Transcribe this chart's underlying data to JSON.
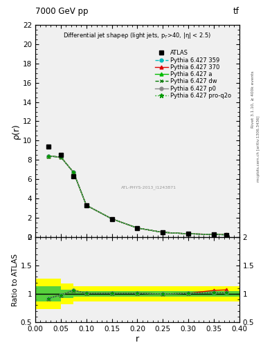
{
  "title_top": "7000 GeV pp",
  "title_right": "tf",
  "ylabel_main": "ρ(r)",
  "ylabel_ratio": "Ratio to ATLAS",
  "xlabel": "r",
  "right_label1": "Rivet 3.1.10, ≥ 400k events",
  "right_label2": "mcplots.cern.ch [arXiv:1306.3436]",
  "r_values": [
    0.025,
    0.05,
    0.075,
    0.1,
    0.15,
    0.2,
    0.25,
    0.3,
    0.35,
    0.375
  ],
  "atlas_data": [
    9.4,
    8.5,
    6.3,
    3.3,
    1.9,
    0.95,
    0.5,
    0.35,
    0.28,
    0.25
  ],
  "py359_data": [
    8.4,
    8.3,
    6.7,
    3.3,
    1.9,
    0.95,
    0.5,
    0.35,
    0.28,
    0.25
  ],
  "py370_data": [
    8.4,
    8.3,
    6.7,
    3.3,
    1.9,
    0.95,
    0.5,
    0.35,
    0.29,
    0.26
  ],
  "pya_data": [
    8.4,
    8.3,
    6.7,
    3.3,
    1.9,
    0.95,
    0.5,
    0.35,
    0.28,
    0.25
  ],
  "pydw_data": [
    8.4,
    8.3,
    6.7,
    3.3,
    1.9,
    0.95,
    0.5,
    0.35,
    0.28,
    0.25
  ],
  "pyp0_data": [
    8.4,
    8.3,
    6.7,
    3.3,
    1.9,
    0.95,
    0.5,
    0.35,
    0.28,
    0.25
  ],
  "pyq2o_data": [
    8.4,
    8.3,
    6.7,
    3.3,
    1.9,
    0.95,
    0.5,
    0.35,
    0.28,
    0.25
  ],
  "ratio_py359": [
    0.91,
    0.98,
    1.06,
    1.01,
    1.01,
    1.01,
    1.0,
    1.01,
    1.02,
    1.02
  ],
  "ratio_py370": [
    0.92,
    0.98,
    1.06,
    1.01,
    1.01,
    1.01,
    1.0,
    1.01,
    1.06,
    1.07
  ],
  "ratio_pya": [
    0.92,
    0.98,
    1.06,
    1.01,
    1.01,
    1.01,
    1.0,
    1.01,
    1.02,
    1.02
  ],
  "ratio_pydw": [
    0.92,
    0.98,
    1.06,
    1.01,
    1.01,
    1.01,
    1.0,
    1.01,
    1.02,
    1.02
  ],
  "ratio_pyp0": [
    0.92,
    0.98,
    1.06,
    1.01,
    1.01,
    1.01,
    1.0,
    1.01,
    1.02,
    1.02
  ],
  "ratio_pyq2o": [
    0.92,
    0.98,
    1.06,
    1.01,
    1.01,
    1.01,
    1.0,
    1.01,
    1.02,
    1.02
  ],
  "band_r_edges": [
    0.0,
    0.025,
    0.05,
    0.1,
    0.15,
    0.2,
    0.25,
    0.3,
    0.35,
    0.375,
    0.4
  ],
  "ratio_yellow_lo": [
    0.73,
    0.73,
    0.82,
    0.87,
    0.87,
    0.87,
    0.87,
    0.87,
    0.87,
    0.87
  ],
  "ratio_yellow_hi": [
    1.27,
    1.27,
    1.18,
    1.13,
    1.13,
    1.13,
    1.13,
    1.13,
    1.13,
    1.13
  ],
  "ratio_green_lo": [
    0.87,
    0.87,
    0.93,
    0.95,
    0.95,
    0.95,
    0.95,
    0.95,
    0.95,
    0.95
  ],
  "ratio_green_hi": [
    1.13,
    1.13,
    1.07,
    1.05,
    1.05,
    1.05,
    1.05,
    1.05,
    1.05,
    1.05
  ],
  "color_359": "#00BBBB",
  "color_370": "#DD0000",
  "color_a": "#00BB00",
  "color_dw": "#007700",
  "color_p0": "#888888",
  "color_q2o": "#009900",
  "ylim_main": [
    0,
    22
  ],
  "ylim_ratio": [
    0.5,
    2.0
  ],
  "xlim": [
    0.0,
    0.4
  ],
  "yticks_main": [
    0,
    2,
    4,
    6,
    8,
    10,
    12,
    14,
    16,
    18,
    20,
    22
  ],
  "yticks_ratio": [
    0.5,
    1.0,
    1.5,
    2.0
  ],
  "xticks": [
    0.0,
    0.05,
    0.1,
    0.15,
    0.2,
    0.25,
    0.3,
    0.35,
    0.4
  ]
}
